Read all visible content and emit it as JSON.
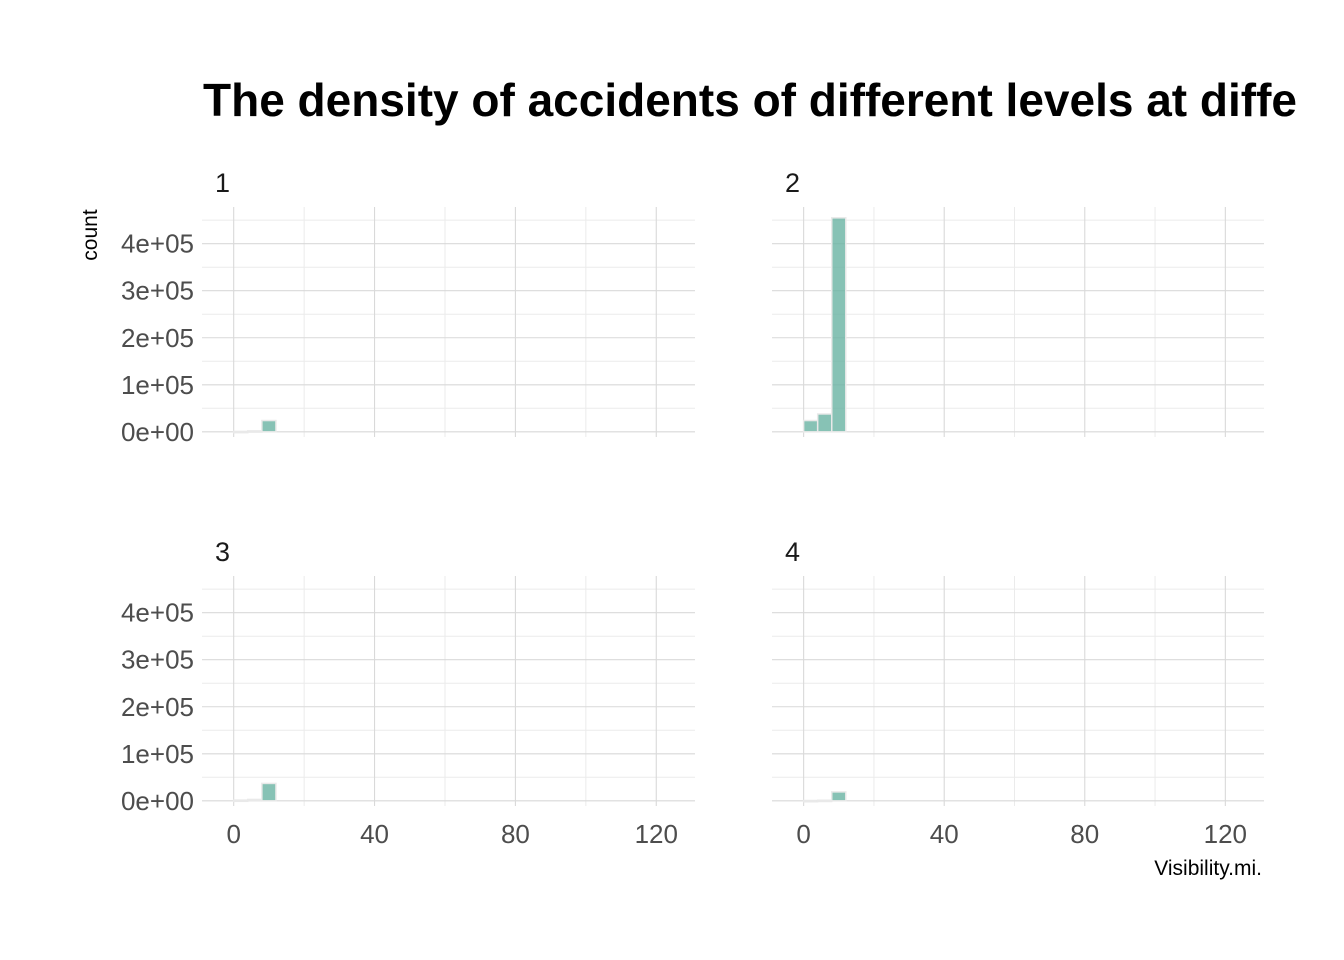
{
  "chart_data": {
    "type": "histogram",
    "title": "The density of accidents of different levels at diffe",
    "xlabel": "Visibility.mi.",
    "ylabel": "count",
    "xlim": [
      -9,
      131
    ],
    "ylim": [
      -11000,
      478000
    ],
    "x_ticks": [
      0,
      40,
      80,
      120
    ],
    "x_tick_labels": [
      "0",
      "40",
      "80",
      "120"
    ],
    "y_ticks": [
      0,
      100000,
      200000,
      300000,
      400000
    ],
    "y_tick_labels": [
      "0e+00",
      "1e+05",
      "2e+05",
      "3e+05",
      "4e+05"
    ],
    "grid": true,
    "bar_color": "#69b3a2",
    "bin_width": 4,
    "facets": [
      {
        "label": "1",
        "bins": [
          {
            "x0": 0,
            "x1": 4,
            "count": 800
          },
          {
            "x0": 4,
            "x1": 8,
            "count": 2000
          },
          {
            "x0": 8,
            "x1": 12,
            "count": 24000
          }
        ]
      },
      {
        "label": "2",
        "bins": [
          {
            "x0": 0,
            "x1": 4,
            "count": 24000
          },
          {
            "x0": 4,
            "x1": 8,
            "count": 38000
          },
          {
            "x0": 8,
            "x1": 12,
            "count": 455000
          }
        ]
      },
      {
        "label": "3",
        "bins": [
          {
            "x0": 0,
            "x1": 4,
            "count": 1500
          },
          {
            "x0": 4,
            "x1": 8,
            "count": 3000
          },
          {
            "x0": 8,
            "x1": 12,
            "count": 37000
          }
        ]
      },
      {
        "label": "4",
        "bins": [
          {
            "x0": 0,
            "x1": 4,
            "count": 600
          },
          {
            "x0": 4,
            "x1": 8,
            "count": 1200
          },
          {
            "x0": 8,
            "x1": 12,
            "count": 19000
          }
        ]
      }
    ]
  }
}
